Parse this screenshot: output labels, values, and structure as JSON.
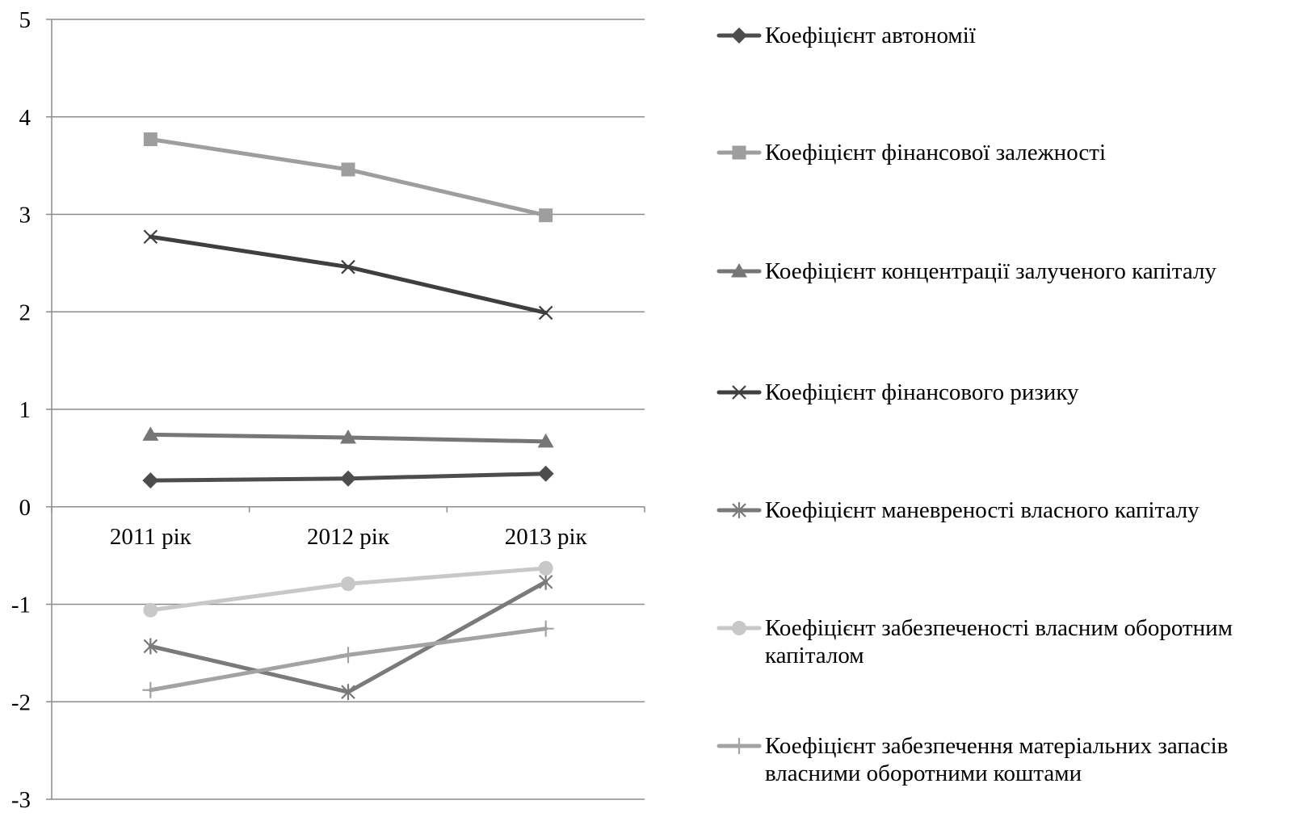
{
  "chart_data": {
    "type": "line",
    "title": "",
    "xlabel": "",
    "ylabel": "",
    "categories": [
      "2011 рік",
      "2012 рік",
      "2013 рік"
    ],
    "ylim": [
      -3,
      5
    ],
    "yticks": [
      "5",
      "4",
      "3",
      "2",
      "1",
      "0",
      "-1",
      "-2",
      "-3"
    ],
    "grid": "horizontal",
    "legend_position": "right",
    "series": [
      {
        "name": "Коефіцієнт автономії",
        "values": [
          0.27,
          0.29,
          0.34
        ],
        "color": "#4d4d4d",
        "marker": "diamond"
      },
      {
        "name": "Коефіцієнт фінансової залежності",
        "values": [
          3.77,
          3.46,
          2.99
        ],
        "color": "#9e9e9e",
        "marker": "square"
      },
      {
        "name": "Коефіцієнт концентрації залученого капіталу",
        "values": [
          0.74,
          0.71,
          0.67
        ],
        "color": "#767676",
        "marker": "triangle"
      },
      {
        "name": "Коефіцієнт фінансового ризику",
        "values": [
          2.77,
          2.46,
          1.99
        ],
        "color": "#3f3f3f",
        "marker": "x"
      },
      {
        "name": "Коефіцієнт маневреності власного капіталу",
        "values": [
          -1.43,
          -1.9,
          -0.77
        ],
        "color": "#7a7a7a",
        "marker": "star"
      },
      {
        "name": "Коефіцієнт забезпеченості власним оборотним капіталом",
        "legend_lines": [
          "Коефіцієнт забезпеченості власним оборотним",
          "капіталом"
        ],
        "values": [
          -1.06,
          -0.79,
          -0.63
        ],
        "color": "#c8c8c8",
        "marker": "circle"
      },
      {
        "name": "Коефіцієнт забезпечення матеріальних запасів власними оборотними коштами",
        "legend_lines": [
          "Коефіцієнт забезпечення матеріальних запасів",
          "власними оборотними коштами"
        ],
        "values": [
          -1.88,
          -1.52,
          -1.25
        ],
        "color": "#a3a3a3",
        "marker": "plus"
      }
    ]
  }
}
